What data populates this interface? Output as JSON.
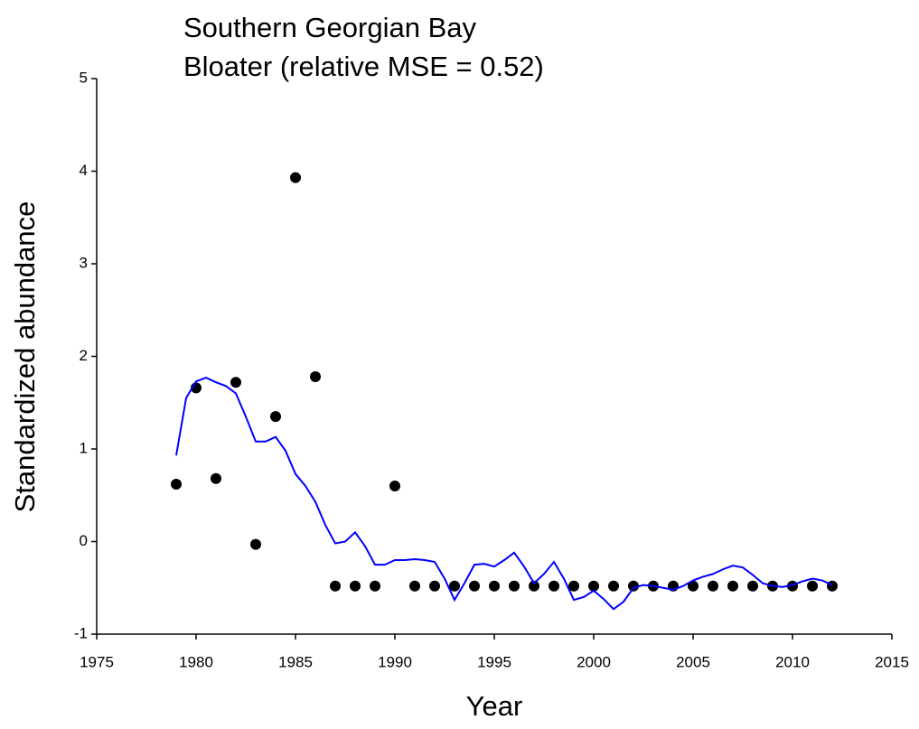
{
  "chart_data": {
    "type": "scatter",
    "title": "Southern Georgian Bay",
    "subtitle": "Bloater (relative MSE = 0.52)",
    "x_label": "Year",
    "y_label": "Standardized abundance",
    "xlim": [
      1975,
      2015
    ],
    "xticks": [
      1975,
      1980,
      1985,
      1990,
      1995,
      2000,
      2005,
      2010,
      2015
    ],
    "ylim": [
      -1,
      5
    ],
    "yticks": [
      -1,
      0,
      1,
      2,
      3,
      4,
      5
    ],
    "grid": false,
    "series": [
      {
        "type": "scatter",
        "color": "#000000",
        "x": [
          1979,
          1980,
          1981,
          1982,
          1983,
          1984,
          1985,
          1986,
          1987,
          1988,
          1989,
          1990,
          1991,
          1992,
          1993,
          1994,
          1995,
          1996,
          1997,
          1998,
          1999,
          2000,
          2001,
          2002,
          2003,
          2004,
          2005,
          2006,
          2007,
          2008,
          2009,
          2010,
          2011,
          2012
        ],
        "values": [
          0.62,
          1.66,
          0.68,
          1.72,
          -0.03,
          1.35,
          3.93,
          1.78,
          -0.48,
          -0.48,
          -0.48,
          0.6,
          -0.48,
          -0.48,
          -0.48,
          -0.48,
          -0.48,
          -0.48,
          -0.48,
          -0.48,
          -0.48,
          -0.48,
          -0.48,
          -0.48,
          -0.48,
          -0.48,
          -0.48,
          -0.48,
          -0.48,
          -0.48,
          -0.48,
          -0.48,
          -0.48,
          -0.48
        ]
      },
      {
        "type": "line",
        "color": "#0000ff",
        "x": [
          1979,
          1979.5,
          1980,
          1980.5,
          1981,
          1981.5,
          1982,
          1982.5,
          1983,
          1983.5,
          1984,
          1984.5,
          1985,
          1985.5,
          1986,
          1986.5,
          1987,
          1987.5,
          1988,
          1988.5,
          1989,
          1989.5,
          1990,
          1990.5,
          1991,
          1991.5,
          1992,
          1992.5,
          1993,
          1993.5,
          1994,
          1994.5,
          1995,
          1995.5,
          1996,
          1996.5,
          1997,
          1997.5,
          1998,
          1998.5,
          1999,
          1999.5,
          2000,
          2000.5,
          2001,
          2001.5,
          2002,
          2002.5,
          2003,
          2003.5,
          2004,
          2004.5,
          2005,
          2005.5,
          2006,
          2006.5,
          2007,
          2007.5,
          2008,
          2008.5,
          2009,
          2009.5,
          2010,
          2010.5,
          2011,
          2011.5,
          2012
        ],
        "values": [
          0.93,
          1.55,
          1.73,
          1.77,
          1.72,
          1.68,
          1.6,
          1.35,
          1.08,
          1.08,
          1.13,
          0.98,
          0.73,
          0.6,
          0.43,
          0.18,
          -0.02,
          0.0,
          0.1,
          -0.05,
          -0.25,
          -0.25,
          -0.2,
          -0.2,
          -0.19,
          -0.2,
          -0.22,
          -0.4,
          -0.63,
          -0.45,
          -0.25,
          -0.24,
          -0.27,
          -0.2,
          -0.12,
          -0.27,
          -0.45,
          -0.35,
          -0.22,
          -0.4,
          -0.63,
          -0.6,
          -0.53,
          -0.62,
          -0.73,
          -0.65,
          -0.5,
          -0.47,
          -0.48,
          -0.5,
          -0.52,
          -0.48,
          -0.42,
          -0.38,
          -0.35,
          -0.3,
          -0.26,
          -0.28,
          -0.36,
          -0.45,
          -0.48,
          -0.49,
          -0.47,
          -0.43,
          -0.4,
          -0.42,
          -0.47
        ]
      }
    ]
  }
}
